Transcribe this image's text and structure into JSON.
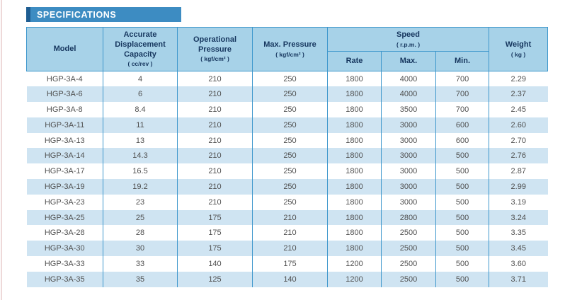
{
  "page": {
    "title": "SPECIFICATIONS"
  },
  "table": {
    "headers": {
      "model": "Model",
      "capacity_label": "Accurate Displacement Capacity",
      "capacity_unit": "( cc/rev )",
      "op_pressure_label": "Operational Pressure",
      "op_pressure_unit": "( kgf/cm² )",
      "max_pressure_label": "Max. Pressure",
      "max_pressure_unit": "( kgf/cm² )",
      "speed_label": "Speed",
      "speed_unit": "( r.p.m. )",
      "speed_sub": {
        "rate": "Rate",
        "max": "Max.",
        "min": "Min."
      },
      "weight_label": "Weight",
      "weight_unit": "( kg )"
    },
    "rows": [
      [
        "HGP-3A-4",
        "4",
        "210",
        "250",
        "1800",
        "4000",
        "700",
        "2.29"
      ],
      [
        "HGP-3A-6",
        "6",
        "210",
        "250",
        "1800",
        "4000",
        "700",
        "2.37"
      ],
      [
        "HGP-3A-8",
        "8.4",
        "210",
        "250",
        "1800",
        "3500",
        "700",
        "2.45"
      ],
      [
        "HGP-3A-11",
        "11",
        "210",
        "250",
        "1800",
        "3000",
        "600",
        "2.60"
      ],
      [
        "HGP-3A-13",
        "13",
        "210",
        "250",
        "1800",
        "3000",
        "600",
        "2.70"
      ],
      [
        "HGP-3A-14",
        "14.3",
        "210",
        "250",
        "1800",
        "3000",
        "500",
        "2.76"
      ],
      [
        "HGP-3A-17",
        "16.5",
        "210",
        "250",
        "1800",
        "3000",
        "500",
        "2.87"
      ],
      [
        "HGP-3A-19",
        "19.2",
        "210",
        "250",
        "1800",
        "3000",
        "500",
        "2.99"
      ],
      [
        "HGP-3A-23",
        "23",
        "210",
        "250",
        "1800",
        "3000",
        "500",
        "3.19"
      ],
      [
        "HGP-3A-25",
        "25",
        "175",
        "210",
        "1800",
        "2800",
        "500",
        "3.24"
      ],
      [
        "HGP-3A-28",
        "28",
        "175",
        "210",
        "1800",
        "2500",
        "500",
        "3.35"
      ],
      [
        "HGP-3A-30",
        "30",
        "175",
        "210",
        "1800",
        "2500",
        "500",
        "3.45"
      ],
      [
        "HGP-3A-33",
        "33",
        "140",
        "175",
        "1200",
        "2500",
        "500",
        "3.60"
      ],
      [
        "HGP-3A-35",
        "35",
        "125",
        "140",
        "1200",
        "2500",
        "500",
        "3.71"
      ]
    ]
  },
  "colors": {
    "title_bar": "#3d8cc2",
    "title_accent": "#1e5d92",
    "header_bg": "#a7d2e8",
    "header_text": "#16365e",
    "border": "#3e97cc",
    "row_alt": "#cfe4f2",
    "body_text": "#4f4f4f"
  }
}
